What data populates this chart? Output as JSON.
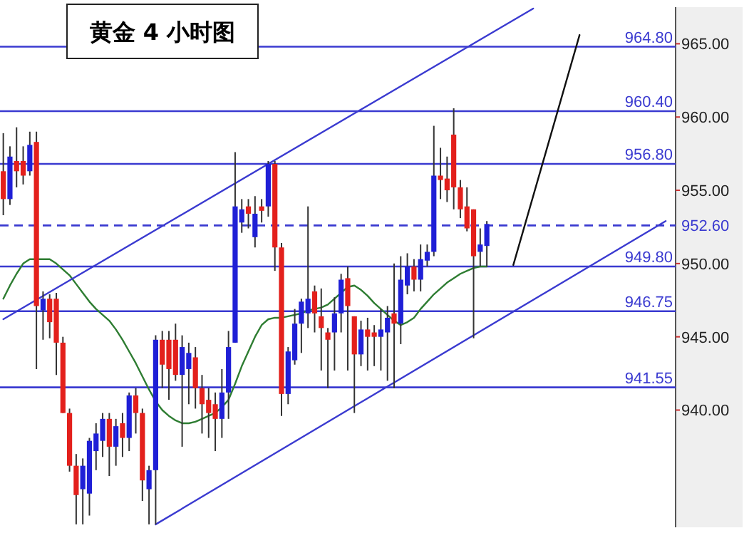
{
  "chart_data": {
    "type": "candlestick",
    "title": "黄金 4 小时图",
    "categories": [
      null,
      null,
      null,
      null,
      null,
      null,
      null,
      null,
      null,
      null,
      null,
      null,
      null,
      null,
      null,
      null,
      null,
      null,
      null,
      null,
      null,
      null,
      null,
      null,
      null,
      null,
      null,
      null,
      null,
      null,
      null,
      null,
      null,
      null,
      null,
      null,
      null,
      null,
      null,
      null,
      null,
      null,
      null,
      null,
      null,
      null,
      null,
      null,
      null,
      null,
      null,
      null,
      null,
      null,
      null,
      null,
      null,
      null,
      null,
      null,
      null,
      null,
      null,
      null,
      null,
      null,
      null,
      null,
      null,
      null,
      null,
      null,
      null,
      null,
      null,
      null,
      null,
      null,
      null,
      null,
      null,
      null,
      null,
      null,
      null,
      null,
      null,
      null,
      null,
      null,
      null,
      null,
      null,
      null,
      null,
      null,
      null,
      null,
      null,
      null,
      null,
      null
    ],
    "ohlc": [
      [
        956.3,
        958.9,
        953.3,
        954.4
      ],
      [
        954.4,
        958,
        954,
        957.3
      ],
      [
        957,
        959.3,
        955.2,
        956.3
      ],
      [
        957,
        958,
        955.4,
        956
      ],
      [
        956.3,
        959,
        956,
        958.1
      ],
      [
        958.3,
        959,
        942.8,
        947.1
      ],
      [
        946.8,
        948.1,
        944.8,
        947.6
      ],
      [
        947.6,
        947.9,
        944.9,
        946
      ],
      [
        947.6,
        948,
        942.4,
        944.6
      ],
      [
        944.6,
        945,
        939.8,
        939.8
      ],
      [
        939.8,
        940.1,
        935.8,
        936.2
      ],
      [
        936.2,
        937,
        932.2,
        934.2
      ],
      [
        934.6,
        936.7,
        932.2,
        936.2
      ],
      [
        934.3,
        938.1,
        932.8,
        937.9
      ],
      [
        937.2,
        939.1,
        935.9,
        938.4
      ],
      [
        937.9,
        939.8,
        936.8,
        939.4
      ],
      [
        939.4,
        939.8,
        935.5,
        937.5
      ],
      [
        937.5,
        939.4,
        936.2,
        938.9
      ],
      [
        939.1,
        939.8,
        936.8,
        938.1
      ],
      [
        938.1,
        941.2,
        937.2,
        941
      ],
      [
        941,
        941.5,
        938.4,
        939.8
      ],
      [
        939.8,
        940.1,
        933.8,
        935.2
      ],
      [
        934.6,
        936.2,
        932.2,
        935.9
      ],
      [
        935.9,
        945.1,
        932.2,
        944.8
      ],
      [
        944.8,
        945.4,
        941.5,
        943.1
      ],
      [
        944.8,
        945.4,
        940.7,
        942.8
      ],
      [
        944.8,
        945.9,
        942,
        942.4
      ],
      [
        942.4,
        945.1,
        937.5,
        944.3
      ],
      [
        942.8,
        944.6,
        940.4,
        943.9
      ],
      [
        943.6,
        944.3,
        940.1,
        941.5
      ],
      [
        941.5,
        942.4,
        938.4,
        940.4
      ],
      [
        940.7,
        941.5,
        938.1,
        939.8
      ],
      [
        940.4,
        941.2,
        937.2,
        939.4
      ],
      [
        939.4,
        942.8,
        938.1,
        941.2
      ],
      [
        941.2,
        945.4,
        939.4,
        944.3
      ],
      [
        944.6,
        957.6,
        944.6,
        953.9
      ],
      [
        952.8,
        954.4,
        952.1,
        953.7
      ],
      [
        953.9,
        954.4,
        952.4,
        953.4
      ],
      [
        951.8,
        954.6,
        951.1,
        953.4
      ],
      [
        953.9,
        954.4,
        952.8,
        953.6
      ],
      [
        953.9,
        957,
        953.2,
        956.8
      ],
      [
        956.8,
        957,
        949.5,
        951.1
      ],
      [
        951.1,
        951.4,
        939.6,
        941.1
      ],
      [
        941.1,
        944.3,
        940.4,
        944
      ],
      [
        943.4,
        946.9,
        943.1,
        945.9
      ],
      [
        945.9,
        947.6,
        943.9,
        947.4
      ],
      [
        946.6,
        953.9,
        945.6,
        947.6
      ],
      [
        948.1,
        948.5,
        945.3,
        946.6
      ],
      [
        946.4,
        948.3,
        942.7,
        945.6
      ],
      [
        945.3,
        945.6,
        941.5,
        944.8
      ],
      [
        945.3,
        947.7,
        942.7,
        946.6
      ],
      [
        946.6,
        949.3,
        945.3,
        948.9
      ],
      [
        949,
        949.8,
        942.7,
        947.1
      ],
      [
        946.4,
        946.4,
        939.8,
        943.8
      ],
      [
        943.8,
        946.1,
        943,
        945.5
      ],
      [
        945.5,
        946.3,
        942.7,
        945
      ],
      [
        945.3,
        945.8,
        943,
        945
      ],
      [
        945,
        946.9,
        942.7,
        945.5
      ],
      [
        945.3,
        947.1,
        942,
        946.3
      ],
      [
        946.6,
        950,
        941.5,
        945.9
      ],
      [
        945.9,
        950.5,
        944.5,
        948.9
      ],
      [
        948.5,
        950.7,
        947.9,
        949.8
      ],
      [
        949.8,
        950.3,
        948.1,
        948.9
      ],
      [
        948.9,
        951.3,
        948.1,
        950.3
      ],
      [
        950.2,
        951.3,
        949.8,
        950.8
      ],
      [
        950.8,
        959.4,
        950.5,
        956
      ],
      [
        956,
        957.9,
        954.4,
        955.7
      ],
      [
        955.8,
        957.3,
        954.2,
        955
      ],
      [
        958.8,
        960.6,
        953.7,
        955.2
      ],
      [
        955.2,
        955.7,
        953.1,
        953.7
      ],
      [
        953.9,
        955.2,
        952.2,
        952.4
      ],
      [
        953.7,
        953.7,
        944.9,
        950.5
      ],
      [
        950.8,
        952.4,
        949.8,
        951.3
      ],
      [
        951.2,
        952.9,
        949.8,
        952.7
      ],
      null,
      null,
      null,
      null,
      null,
      null,
      null,
      null,
      null,
      null,
      null,
      null,
      null,
      null,
      null,
      null,
      null,
      null,
      null,
      null,
      null,
      null,
      null,
      null,
      null,
      null,
      null,
      null
    ],
    "series": [
      {
        "type": "line",
        "color": "#2e7d32",
        "values": [
          947.6,
          948.5,
          949.3,
          950.0,
          950.3,
          950.3,
          950.3,
          950.3,
          950.0,
          949.6,
          949.2,
          948.6,
          948.0,
          947.4,
          946.9,
          946.5,
          946.1,
          945.5,
          944.8,
          944.0,
          943.2,
          942.3,
          941.4,
          940.6,
          940.0,
          939.6,
          939.3,
          939.1,
          939.1,
          939.2,
          939.4,
          939.6,
          939.8,
          940.2,
          940.7,
          941.8,
          943.0,
          944.0,
          945.0,
          945.8,
          946.2,
          946.3,
          946.3,
          946.4,
          946.5,
          946.6,
          946.8,
          946.9,
          947.0,
          947.2,
          947.6,
          948.0,
          948.4,
          948.5,
          948.2,
          947.8,
          947.3,
          946.9,
          946.5,
          946.1,
          945.8,
          946.0,
          946.3,
          946.9,
          947.4,
          947.9,
          948.3,
          948.7,
          949.0,
          949.3,
          949.5,
          949.7,
          949.8,
          949.8,
          null,
          null,
          null,
          null,
          null,
          null,
          null,
          null,
          null,
          null,
          null,
          null,
          null,
          null,
          null,
          null,
          null,
          null,
          null,
          null,
          null,
          null,
          null,
          null,
          null,
          null,
          null,
          null
        ]
      },
      {
        "type": "line",
        "color": "#3a3ad0",
        "values": [
          946.2,
          null,
          null,
          null,
          null,
          null,
          null,
          null,
          null,
          null,
          null,
          null,
          null,
          null,
          null,
          null,
          null,
          null,
          null,
          null,
          null,
          null,
          null,
          null,
          null,
          null,
          null,
          null,
          null,
          null,
          null,
          null,
          null,
          null,
          null,
          null,
          null,
          null,
          null,
          null,
          null,
          null,
          null,
          null,
          null,
          null,
          null,
          null,
          null,
          null,
          null,
          null,
          null,
          null,
          null,
          null,
          null,
          null,
          null,
          null,
          null,
          null,
          null,
          null,
          null,
          null,
          null,
          null,
          null,
          null,
          null,
          null,
          null,
          null,
          null,
          null,
          null,
          null,
          null,
          null,
          967.4,
          null,
          null,
          null,
          null,
          null,
          null,
          null,
          null,
          null,
          null,
          null,
          null,
          null,
          null,
          null,
          null,
          null,
          null,
          null,
          null,
          null
        ]
      },
      {
        "type": "line",
        "color": "#3a3ad0",
        "values": [
          null,
          null,
          null,
          null,
          null,
          null,
          null,
          null,
          null,
          null,
          null,
          null,
          null,
          null,
          null,
          null,
          null,
          null,
          null,
          null,
          null,
          null,
          null,
          932.2,
          null,
          null,
          null,
          null,
          null,
          null,
          null,
          null,
          null,
          null,
          null,
          null,
          null,
          null,
          null,
          null,
          null,
          null,
          null,
          null,
          null,
          null,
          null,
          null,
          null,
          null,
          null,
          null,
          null,
          null,
          null,
          null,
          null,
          null,
          null,
          null,
          null,
          null,
          null,
          null,
          null,
          null,
          null,
          null,
          null,
          null,
          null,
          null,
          null,
          null,
          null,
          null,
          null,
          null,
          null,
          null,
          null,
          null,
          null,
          null,
          null,
          null,
          null,
          null,
          null,
          null,
          null,
          null,
          null,
          null,
          null,
          null,
          null,
          null,
          null,
          null,
          952.9,
          null
        ]
      },
      {
        "type": "line",
        "color": "#111111",
        "values": [
          null,
          null,
          null,
          null,
          null,
          null,
          null,
          null,
          null,
          null,
          null,
          null,
          null,
          null,
          null,
          null,
          null,
          null,
          null,
          null,
          null,
          null,
          null,
          null,
          null,
          null,
          null,
          null,
          null,
          null,
          null,
          null,
          null,
          null,
          null,
          null,
          null,
          null,
          null,
          null,
          null,
          null,
          null,
          null,
          null,
          null,
          null,
          null,
          null,
          null,
          null,
          null,
          null,
          null,
          null,
          null,
          null,
          null,
          null,
          null,
          null,
          null,
          null,
          null,
          null,
          null,
          null,
          null,
          null,
          null,
          null,
          null,
          null,
          null,
          null,
          null,
          null,
          949.9,
          null,
          null,
          null,
          null,
          null,
          null,
          null,
          null,
          null,
          965.6,
          null,
          null,
          null,
          null,
          null,
          null,
          null,
          null,
          null,
          null,
          null,
          null,
          null,
          null
        ]
      }
    ],
    "ylim": [
      932,
      967.5
    ],
    "yticks": [
      {
        "value": 940,
        "label": "940.00"
      },
      {
        "value": 945,
        "label": "945.00"
      },
      {
        "value": 950,
        "label": "950.00"
      },
      {
        "value": 955,
        "label": "955.00"
      },
      {
        "value": 960,
        "label": "960.00"
      },
      {
        "value": 965,
        "label": "965.00"
      }
    ],
    "tick_labels": "y",
    "ref_lines": [
      {
        "axis": "y",
        "value": 964.8,
        "label": "964.80",
        "color": "#3a3ad0"
      },
      {
        "axis": "y",
        "value": 960.4,
        "label": "960.40",
        "color": "#3a3ad0"
      },
      {
        "axis": "y",
        "value": 956.8,
        "label": "956.80",
        "color": "#3a3ad0"
      },
      {
        "axis": "y",
        "value": 952.6,
        "label": "952.60",
        "color": "#3a3ad0",
        "line_style": "dashed"
      },
      {
        "axis": "y",
        "value": 949.8,
        "label": "949.80",
        "color": "#3a3ad0"
      },
      {
        "axis": "y",
        "value": 946.75,
        "label": "946.75",
        "color": "#3a3ad0"
      },
      {
        "axis": "y",
        "value": 941.55,
        "label": "941.55",
        "color": "#3a3ad0"
      }
    ]
  }
}
